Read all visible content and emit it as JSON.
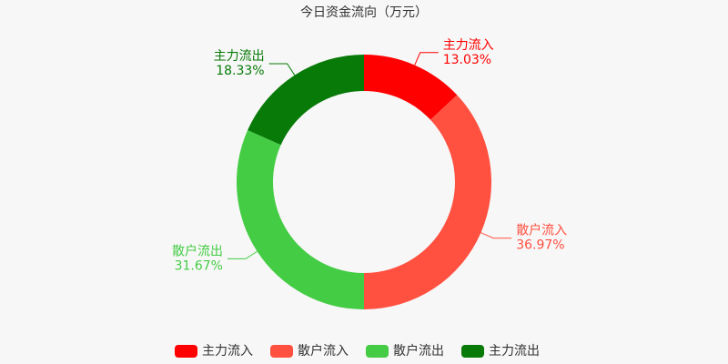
{
  "chart_data": {
    "type": "donut",
    "title": "今日资金流向（万元）",
    "categories": [
      "主力流入",
      "散户流入",
      "散户流出",
      "主力流出"
    ],
    "values": [
      13.03,
      36.97,
      31.67,
      18.33
    ],
    "value_labels": [
      "13.03%",
      "36.97%",
      "31.67%",
      "18.33%"
    ],
    "colors": [
      "#ff0000",
      "#ff5040",
      "#44cc44",
      "#077a07"
    ],
    "legend": "bottom"
  }
}
